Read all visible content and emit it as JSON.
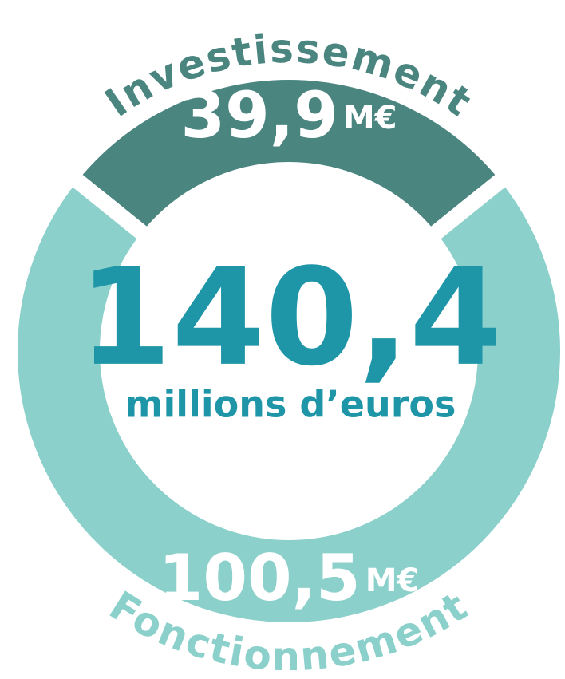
{
  "chart_data": {
    "type": "donut",
    "categories": [
      "Investissement",
      "Fonctionnement"
    ],
    "values": [
      39.9,
      100.5
    ],
    "value_labels": [
      "39,9",
      "100,5"
    ],
    "colors": [
      "#4a8580",
      "#8bd0cb"
    ],
    "unit": "M€",
    "total": {
      "value": 140.4,
      "label": "140,4"
    },
    "total_caption": "millions d’euros"
  }
}
